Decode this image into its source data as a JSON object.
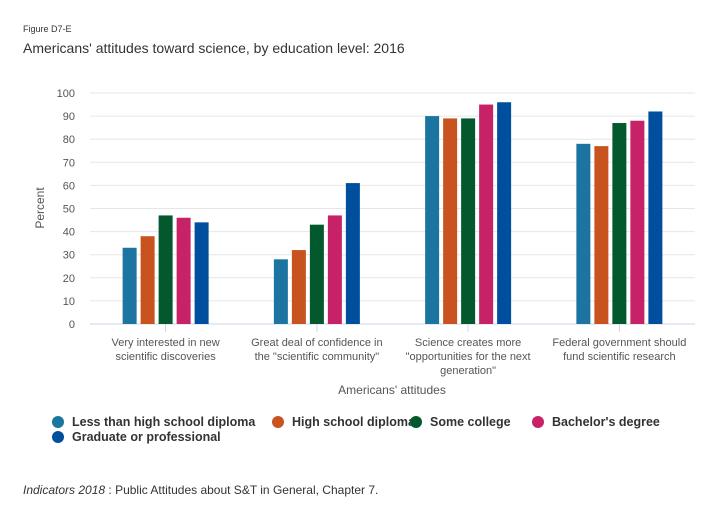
{
  "figure_label": "Figure D7-E",
  "chart_data": {
    "type": "bar",
    "title": "Americans' attitudes toward science, by education level: 2016",
    "xlabel": "Americans' attitudes",
    "ylabel": "Percent",
    "ylim": [
      0,
      100
    ],
    "yticks": [
      0,
      10,
      20,
      30,
      40,
      50,
      60,
      70,
      80,
      90,
      100
    ],
    "grid": true,
    "legend_position": "bottom-left",
    "categories": [
      [
        "Very interested in new",
        "scientific discoveries"
      ],
      [
        "Great deal of confidence in",
        "the \"scientific community\""
      ],
      [
        "Science creates more",
        "\"opportunities for the next",
        "generation\""
      ],
      [
        "Federal government should",
        "fund scientific research"
      ]
    ],
    "series": [
      {
        "name": "Less than high school diploma",
        "color": "#1b75a0",
        "values": [
          33,
          28,
          90,
          78
        ]
      },
      {
        "name": "High school diploma",
        "color": "#c8531f",
        "values": [
          38,
          32,
          89,
          77
        ]
      },
      {
        "name": "Some college",
        "color": "#03582e",
        "values": [
          47,
          43,
          89,
          87
        ]
      },
      {
        "name": "Bachelor's degree",
        "color": "#c72268",
        "values": [
          46,
          47,
          95,
          88
        ]
      },
      {
        "name": "Graduate or professional",
        "color": "#004f9e",
        "values": [
          44,
          61,
          96,
          92
        ]
      }
    ]
  },
  "source": {
    "italic": "Indicators 2018",
    "text": " : Public Attitudes about S&T in General, Chapter 7."
  }
}
